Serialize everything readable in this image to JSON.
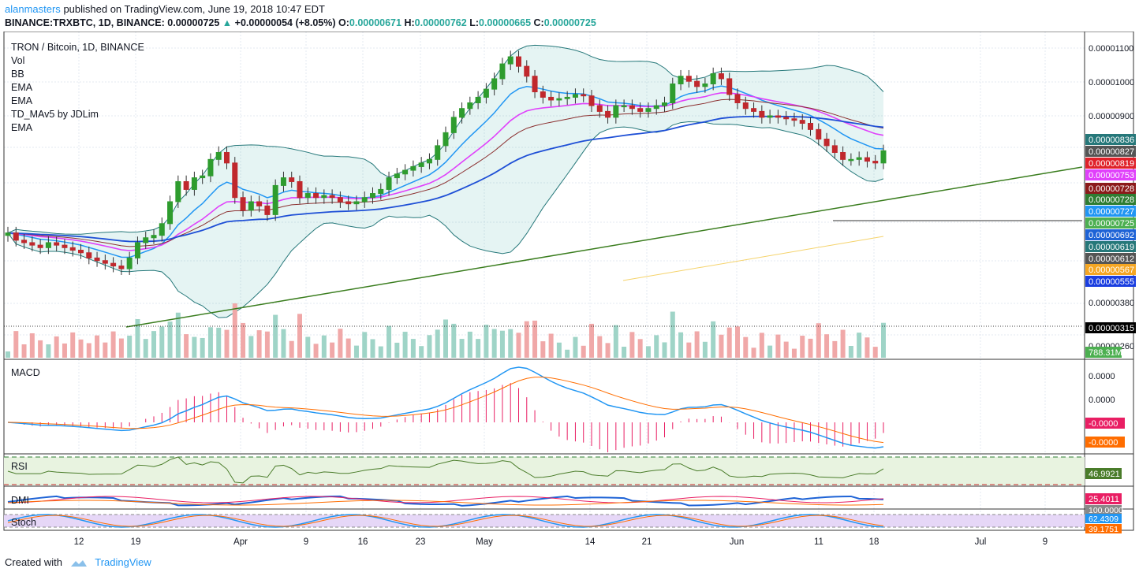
{
  "header": {
    "user": "alanmasters",
    "published_text": "published on TradingView.com, June 19, 2018 10:47 EDT",
    "symbol_line": "BINANCE:TRXBTC, 1D",
    "price": "0.00000725",
    "change": "+0.00000054 (+8.05%)",
    "o_label": "O:",
    "o": "0.00000671",
    "h_label": "H:",
    "h": "0.00000762",
    "l_label": "L:",
    "l": "0.00000665",
    "c_label": "C:",
    "c": "0.00000725"
  },
  "legend": [
    "TRON / Bitcoin, 1D, BINANCE",
    "Vol",
    "BB",
    "EMA",
    "EMA",
    "TD_MAv5 by JDLim",
    "EMA"
  ],
  "pane_labels": {
    "macd": "MACD",
    "rsi": "RSI",
    "dmi": "DMI",
    "stoch": "Stoch"
  },
  "price_axis": {
    "ticks": [
      "0.00001100",
      "0.00001000",
      "0.00000900",
      "0.00000380",
      "0.00000260"
    ],
    "badges": [
      {
        "text": "0.00000836",
        "color": "#26787a"
      },
      {
        "text": "0.00000827",
        "color": "#555555"
      },
      {
        "text": "0.00000819",
        "color": "#e0212a"
      },
      {
        "text": "0.00000753",
        "color": "#e040fb"
      },
      {
        "text": "0.00000728",
        "color": "#8b1a1a"
      },
      {
        "text": "0.00000728",
        "color": "#2e7d32"
      },
      {
        "text": "0.00000727",
        "color": "#2196f3"
      },
      {
        "text": "0.00000725",
        "color": "#4caf50"
      },
      {
        "text": "0.00000692",
        "color": "#1e63d6"
      },
      {
        "text": "0.00000619",
        "color": "#26787a"
      },
      {
        "text": "0.00000612",
        "color": "#555555"
      },
      {
        "text": "0.00000567",
        "color": "#f5a623"
      },
      {
        "text": "0.00000555",
        "color": "#1a3ee0"
      },
      {
        "text": "0.00000315",
        "color": "#000000"
      }
    ],
    "volume_badge": "788.31M"
  },
  "macd_axis": {
    "ticks": [
      "0.0000",
      "0.0000"
    ],
    "badges": [
      {
        "text": "-0.0000",
        "color": "#e91e63"
      },
      {
        "text": "-0.0000",
        "color": "#ff6d00"
      }
    ]
  },
  "rsi_axis": {
    "badge": "46.9921",
    "color": "#4a7c2a"
  },
  "dmi_axis": {
    "badge": "25.4011",
    "color": "#e91e63"
  },
  "stoch_axis": {
    "badges": [
      {
        "text": "100.0000",
        "color": "#888888"
      },
      {
        "text": "62.4309",
        "color": "#2196f3"
      },
      {
        "text": "39.1751",
        "color": "#ff6d00"
      }
    ]
  },
  "time_axis": [
    "12",
    "19",
    "Apr",
    "9",
    "16",
    "23",
    "May",
    "14",
    "21",
    "Jun",
    "11",
    "18",
    "Jul",
    "9"
  ],
  "footer": {
    "created_with": "Created with",
    "brand": "TradingView"
  },
  "chart_data": {
    "type": "candlestick",
    "title": "TRON / Bitcoin, 1D, BINANCE",
    "ylabel": "",
    "ylim_price": [
      3.15e-06,
      1.13e-05
    ],
    "candles_close_approx": [
      5.2e-06,
      5.05e-06,
      5e-06,
      4.95e-06,
      4.9e-06,
      5e-06,
      4.95e-06,
      4.9e-06,
      4.85e-06,
      4.8e-06,
      4.7e-06,
      4.65e-06,
      4.6e-06,
      4.55e-06,
      4.5e-06,
      4.7e-06,
      5e-06,
      5.1e-06,
      5.15e-06,
      5.4e-06,
      5.9e-06,
      6.4e-06,
      6.2e-06,
      6.5e-06,
      6.55e-06,
      7e-06,
      7.2e-06,
      6.9e-06,
      6e-06,
      5.7e-06,
      5.9e-06,
      5.8e-06,
      5.6e-06,
      6.3e-06,
      6.5e-06,
      6.4e-06,
      6e-06,
      6.1e-06,
      6e-06,
      6.05e-06,
      6e-06,
      5.9e-06,
      5.85e-06,
      5.9e-06,
      6e-06,
      6.1e-06,
      6.2e-06,
      6.5e-06,
      6.6e-06,
      6.7e-06,
      6.8e-06,
      6.9e-06,
      7e-06,
      7.4e-06,
      7.8e-06,
      8.3e-06,
      8.6e-06,
      8.8e-06,
      9e-06,
      9.3e-06,
      9.7e-06,
      1.03e-05,
      1.06e-05,
      1.02e-05,
      9.8e-06,
      9.2e-06,
      9e-06,
      8.9e-06,
      8.95e-06,
      9e-06,
      9.1e-06,
      9.05e-06,
      8.7e-06,
      8.5e-06,
      8.3e-06,
      8.7e-06,
      8.7e-06,
      8.6e-06,
      8.5e-06,
      8.6e-06,
      8.7e-06,
      8.8e-06,
      9.5e-06,
      9.8e-06,
      9.6e-06,
      9.4e-06,
      9.5e-06,
      9.9e-06,
      9.7e-06,
      9.1e-06,
      8.8e-06,
      8.6e-06,
      8.5e-06,
      8.3e-06,
      8.35e-06,
      8.3e-06,
      8.25e-06,
      8.2e-06,
      8.1e-06,
      7.9e-06,
      7.6e-06,
      7.4e-06,
      7.2e-06,
      7e-06,
      7e-06,
      7.05e-06,
      6.95e-06,
      6.9e-06,
      7.25e-06
    ],
    "volume_badge": "788.31M",
    "indicators": [
      "Vol",
      "BB",
      "EMA",
      "EMA",
      "TD_MAv5 by JDLim",
      "EMA",
      "MACD",
      "RSI",
      "DMI",
      "Stoch"
    ],
    "last": {
      "open": 6.71e-06,
      "high": 7.62e-06,
      "low": 6.65e-06,
      "close": 7.25e-06
    },
    "rsi_last": 46.9921,
    "dmi_last": 25.4011,
    "stoch_last": [
      62.4309,
      39.1751
    ]
  }
}
